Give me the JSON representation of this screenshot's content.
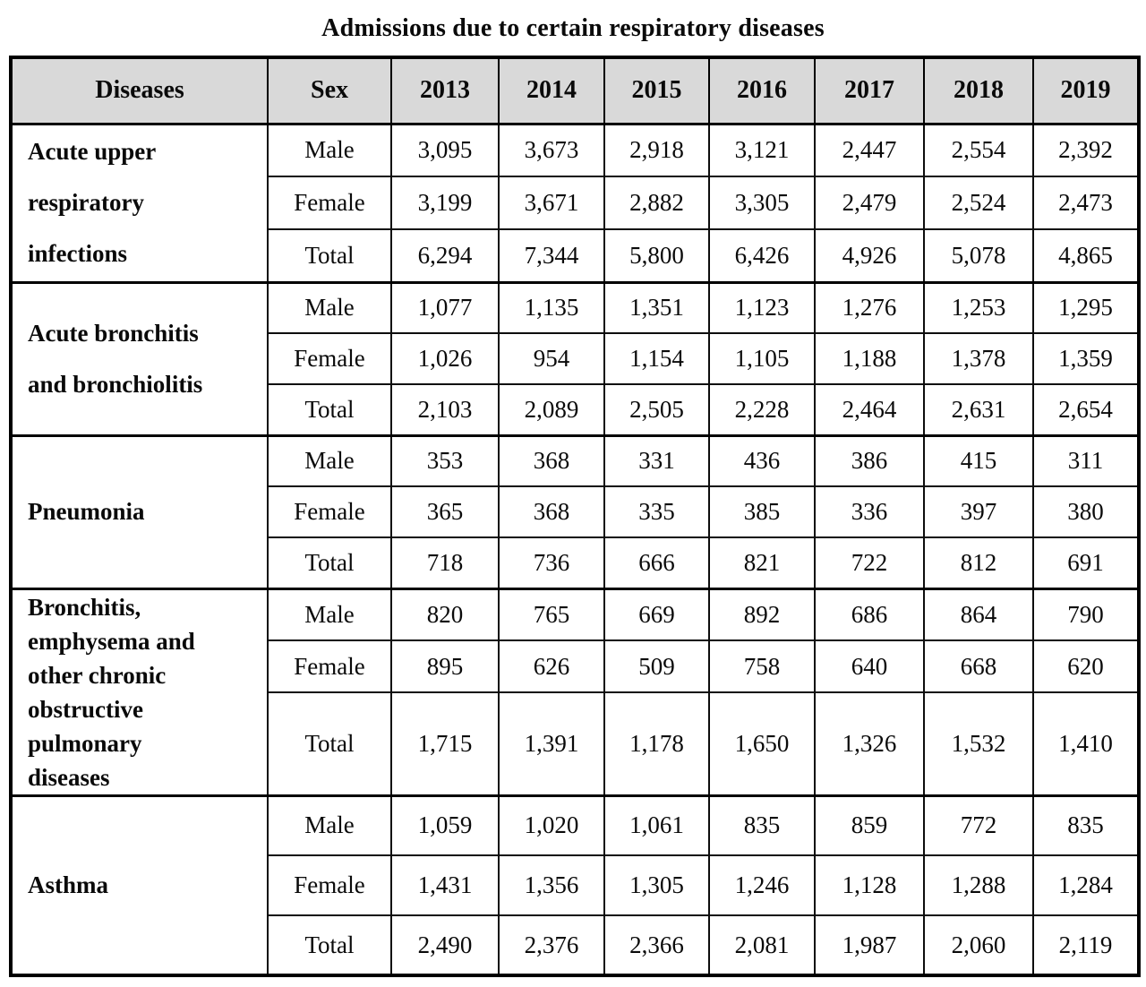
{
  "title": "Admissions due to certain respiratory diseases",
  "chart_data": {
    "type": "table",
    "title": "Admissions due to certain respiratory diseases",
    "columns": [
      "Diseases",
      "Sex",
      "2013",
      "2014",
      "2015",
      "2016",
      "2017",
      "2018",
      "2019"
    ],
    "years": [
      "2013",
      "2014",
      "2015",
      "2016",
      "2017",
      "2018",
      "2019"
    ],
    "groups": [
      {
        "disease": "Acute upper\nrespiratory\ninfections",
        "disease_name": "Acute upper respiratory infections",
        "rows": [
          {
            "sex": "Male",
            "values": [
              "3,095",
              "3,673",
              "2,918",
              "3,121",
              "2,447",
              "2,554",
              "2,392"
            ]
          },
          {
            "sex": "Female",
            "values": [
              "3,199",
              "3,671",
              "2,882",
              "3,305",
              "2,479",
              "2,524",
              "2,473"
            ]
          },
          {
            "sex": "Total",
            "values": [
              "6,294",
              "7,344",
              "5,800",
              "6,426",
              "4,926",
              "5,078",
              "4,865"
            ]
          }
        ]
      },
      {
        "disease": "Acute bronchitis\nand bronchiolitis",
        "disease_name": "Acute bronchitis and bronchiolitis",
        "rows": [
          {
            "sex": "Male",
            "values": [
              "1,077",
              "1,135",
              "1,351",
              "1,123",
              "1,276",
              "1,253",
              "1,295"
            ]
          },
          {
            "sex": "Female",
            "values": [
              "1,026",
              "954",
              "1,154",
              "1,105",
              "1,188",
              "1,378",
              "1,359"
            ]
          },
          {
            "sex": "Total",
            "values": [
              "2,103",
              "2,089",
              "2,505",
              "2,228",
              "2,464",
              "2,631",
              "2,654"
            ]
          }
        ]
      },
      {
        "disease": "Pneumonia",
        "disease_name": "Pneumonia",
        "rows": [
          {
            "sex": "Male",
            "values": [
              "353",
              "368",
              "331",
              "436",
              "386",
              "415",
              "311"
            ]
          },
          {
            "sex": "Female",
            "values": [
              "365",
              "368",
              "335",
              "385",
              "336",
              "397",
              "380"
            ]
          },
          {
            "sex": "Total",
            "values": [
              "718",
              "736",
              "666",
              "821",
              "722",
              "812",
              "691"
            ]
          }
        ]
      },
      {
        "disease": "Bronchitis,\nemphysema and\nother chronic\nobstructive\npulmonary\ndiseases",
        "disease_name": "Bronchitis, emphysema and other chronic obstructive pulmonary diseases",
        "rows": [
          {
            "sex": "Male",
            "values": [
              "820",
              "765",
              "669",
              "892",
              "686",
              "864",
              "790"
            ]
          },
          {
            "sex": "Female",
            "values": [
              "895",
              "626",
              "509",
              "758",
              "640",
              "668",
              "620"
            ]
          },
          {
            "sex": "Total",
            "values": [
              "1,715",
              "1,391",
              "1,178",
              "1,650",
              "1,326",
              "1,532",
              "1,410"
            ]
          }
        ]
      },
      {
        "disease": "Asthma",
        "disease_name": "Asthma",
        "rows": [
          {
            "sex": "Male",
            "values": [
              "1,059",
              "1,020",
              "1,061",
              "835",
              "859",
              "772",
              "835"
            ]
          },
          {
            "sex": "Female",
            "values": [
              "1,431",
              "1,356",
              "1,305",
              "1,246",
              "1,128",
              "1,288",
              "1,284"
            ]
          },
          {
            "sex": "Total",
            "values": [
              "2,490",
              "2,376",
              "2,366",
              "2,081",
              "1,987",
              "2,060",
              "2,119"
            ]
          }
        ]
      }
    ],
    "colors": {
      "header_fill": "#d9d9d9",
      "border": "#000000",
      "text": "#0a0a0a",
      "background": "#ffffff"
    },
    "layout": {
      "grid": "on",
      "header_row": "shaded",
      "body_rows_per_group": 3
    }
  }
}
